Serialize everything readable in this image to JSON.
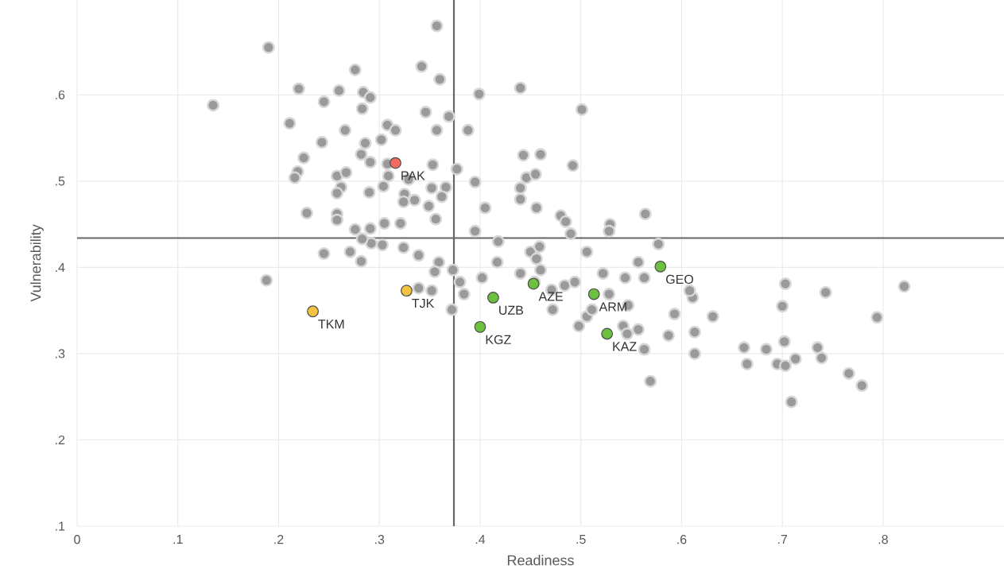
{
  "chart_data": {
    "type": "scatter",
    "xlabel": "Readiness",
    "ylabel": "Vulnerability",
    "grid": true,
    "xlim": [
      0,
      0.92
    ],
    "ylim": [
      0.1,
      0.71
    ],
    "xticks": [
      0,
      {
        "value": 0.1,
        "label": ".1"
      },
      {
        "value": 0.2,
        "label": ".2"
      },
      {
        "value": 0.3,
        "label": ".3"
      },
      {
        "value": 0.4,
        "label": ".4"
      },
      {
        "value": 0.5,
        "label": ".5"
      },
      {
        "value": 0.6,
        "label": ".6"
      },
      {
        "value": 0.7,
        "label": ".7"
      },
      {
        "value": 0.8,
        "label": ".8"
      }
    ],
    "yticks": [
      {
        "value": 0.1,
        "label": ".1"
      },
      {
        "value": 0.2,
        "label": ".2"
      },
      {
        "value": 0.3,
        "label": ".3"
      },
      {
        "value": 0.4,
        "label": ".4"
      },
      {
        "value": 0.5,
        "label": ".5"
      },
      {
        "value": 0.6,
        "label": ".6"
      }
    ],
    "ref_lines": [
      {
        "axis": "x",
        "value": 0.374,
        "color": "#666666"
      },
      {
        "axis": "y",
        "value": 0.434,
        "color": "#666666"
      }
    ],
    "series": [
      {
        "color": "#9a9a9a",
        "x": [
          0.19,
          0.135,
          0.357,
          0.22,
          0.26,
          0.276,
          0.245,
          0.284,
          0.291,
          0.283,
          0.211,
          0.243,
          0.266,
          0.308,
          0.316,
          0.302,
          0.286,
          0.282,
          0.225,
          0.219,
          0.216,
          0.258,
          0.267,
          0.291,
          0.308,
          0.309,
          0.329,
          0.325,
          0.304,
          0.262,
          0.258,
          0.29,
          0.228,
          0.258,
          0.258,
          0.276,
          0.291,
          0.305,
          0.321,
          0.324,
          0.335,
          0.349,
          0.356,
          0.352,
          0.366,
          0.362,
          0.353,
          0.357,
          0.346,
          0.369,
          0.36,
          0.342,
          0.388,
          0.399,
          0.44,
          0.377,
          0.395,
          0.405,
          0.44,
          0.44,
          0.446,
          0.443,
          0.46,
          0.455,
          0.456,
          0.492,
          0.501,
          0.48,
          0.485,
          0.49,
          0.529,
          0.528,
          0.564,
          0.577,
          0.506,
          0.418,
          0.395,
          0.324,
          0.303,
          0.292,
          0.283,
          0.271,
          0.282,
          0.245,
          0.188,
          0.339,
          0.359,
          0.373,
          0.38,
          0.384,
          0.372,
          0.355,
          0.352,
          0.339,
          0.417,
          0.44,
          0.45,
          0.456,
          0.459,
          0.46,
          0.454,
          0.471,
          0.484,
          0.494,
          0.472,
          0.498,
          0.506,
          0.511,
          0.528,
          0.547,
          0.544,
          0.557,
          0.563,
          0.522,
          0.542,
          0.557,
          0.563,
          0.569,
          0.546,
          0.593,
          0.587,
          0.611,
          0.608,
          0.631,
          0.613,
          0.613,
          0.662,
          0.665,
          0.684,
          0.695,
          0.703,
          0.713,
          0.702,
          0.703,
          0.7,
          0.743,
          0.735,
          0.739,
          0.766,
          0.779,
          0.794,
          0.821,
          0.709,
          0.402
        ],
        "values": [
          0.655,
          0.588,
          0.68,
          0.607,
          0.605,
          0.629,
          0.592,
          0.603,
          0.597,
          0.584,
          0.567,
          0.545,
          0.559,
          0.565,
          0.559,
          0.548,
          0.544,
          0.531,
          0.527,
          0.511,
          0.504,
          0.506,
          0.51,
          0.522,
          0.52,
          0.506,
          0.502,
          0.485,
          0.494,
          0.493,
          0.486,
          0.487,
          0.463,
          0.462,
          0.455,
          0.444,
          0.445,
          0.451,
          0.451,
          0.476,
          0.478,
          0.471,
          0.456,
          0.492,
          0.493,
          0.482,
          0.519,
          0.559,
          0.58,
          0.575,
          0.618,
          0.633,
          0.559,
          0.601,
          0.608,
          0.514,
          0.499,
          0.469,
          0.492,
          0.479,
          0.504,
          0.53,
          0.531,
          0.508,
          0.469,
          0.518,
          0.583,
          0.46,
          0.453,
          0.439,
          0.45,
          0.442,
          0.462,
          0.427,
          0.418,
          0.43,
          0.442,
          0.423,
          0.426,
          0.428,
          0.433,
          0.418,
          0.407,
          0.416,
          0.385,
          0.414,
          0.406,
          0.397,
          0.383,
          0.369,
          0.351,
          0.395,
          0.373,
          0.376,
          0.406,
          0.393,
          0.418,
          0.41,
          0.424,
          0.397,
          0.383,
          0.374,
          0.379,
          0.383,
          0.351,
          0.332,
          0.343,
          0.351,
          0.369,
          0.356,
          0.388,
          0.406,
          0.388,
          0.393,
          0.332,
          0.328,
          0.305,
          0.268,
          0.323,
          0.346,
          0.321,
          0.365,
          0.373,
          0.343,
          0.325,
          0.3,
          0.307,
          0.288,
          0.305,
          0.288,
          0.286,
          0.294,
          0.314,
          0.381,
          0.355,
          0.371,
          0.307,
          0.295,
          0.277,
          0.263,
          0.342,
          0.378,
          0.244,
          0.388
        ]
      },
      {
        "color": "#f26b63",
        "x": [
          0.316
        ],
        "values": [
          0.521
        ]
      },
      {
        "color": "#f5c242",
        "x": [
          0.327,
          0.234
        ],
        "values": [
          0.373,
          0.349
        ]
      },
      {
        "color": "#6cbf3f",
        "x": [
          0.413,
          0.4,
          0.453,
          0.513,
          0.526,
          0.579
        ],
        "values": [
          0.365,
          0.331,
          0.381,
          0.369,
          0.323,
          0.401
        ]
      }
    ],
    "annotations": [
      {
        "text": "PAK",
        "x": 0.316,
        "y": 0.521
      },
      {
        "text": "TJK",
        "x": 0.327,
        "y": 0.373
      },
      {
        "text": "TKM",
        "x": 0.234,
        "y": 0.349
      },
      {
        "text": "UZB",
        "x": 0.413,
        "y": 0.365
      },
      {
        "text": "KGZ",
        "x": 0.4,
        "y": 0.331
      },
      {
        "text": "AZE",
        "x": 0.453,
        "y": 0.381
      },
      {
        "text": "ARM",
        "x": 0.513,
        "y": 0.369
      },
      {
        "text": "KAZ",
        "x": 0.526,
        "y": 0.323
      },
      {
        "text": "GEO",
        "x": 0.579,
        "y": 0.401
      }
    ]
  }
}
